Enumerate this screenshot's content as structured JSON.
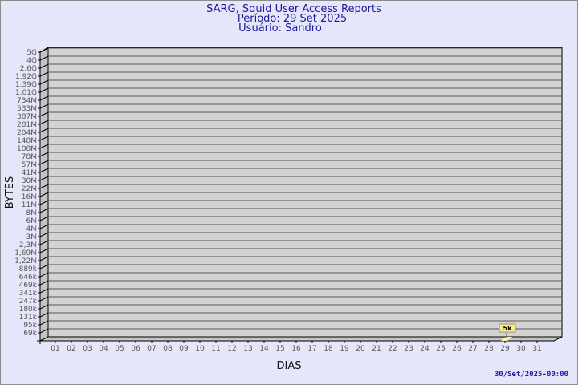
{
  "chart_data": {
    "type": "bar",
    "title": [
      "SARG, Squid User Access Reports",
      "Período: 29 Set 2025",
      "Usuário: Sandro"
    ],
    "xlabel": "DIAS",
    "ylabel": "BYTES",
    "y_scale": "log",
    "y_tick_labels": [
      "5G",
      "4G",
      "2,6G",
      "1,92G",
      "1,39G",
      "1,01G",
      "734M",
      "533M",
      "387M",
      "281M",
      "204M",
      "148M",
      "108M",
      "78M",
      "57M",
      "41M",
      "30M",
      "22M",
      "16M",
      "11M",
      "8M",
      "6M",
      "4M",
      "3M",
      "2,3M",
      "1,69M",
      "1,22M",
      "889k",
      "646k",
      "469k",
      "341k",
      "247k",
      "180k",
      "131k",
      "95k",
      "69k"
    ],
    "categories": [
      "01",
      "02",
      "03",
      "04",
      "05",
      "06",
      "07",
      "08",
      "09",
      "10",
      "11",
      "12",
      "13",
      "14",
      "15",
      "16",
      "17",
      "18",
      "19",
      "20",
      "21",
      "22",
      "23",
      "24",
      "25",
      "26",
      "27",
      "28",
      "29",
      "30",
      "31"
    ],
    "values": [
      null,
      null,
      null,
      null,
      null,
      null,
      null,
      null,
      null,
      null,
      null,
      null,
      null,
      null,
      null,
      null,
      null,
      null,
      null,
      null,
      null,
      null,
      null,
      null,
      null,
      null,
      null,
      null,
      5000,
      null,
      null
    ],
    "data_labels": {
      "29": "5k"
    },
    "grid": true,
    "colors": {
      "background": "#e6e6fa",
      "plot": "#d3d3d3",
      "bar": "#fff0a0",
      "title": "#1a1aa0"
    },
    "footer": "30/Set/2025-00:00"
  }
}
